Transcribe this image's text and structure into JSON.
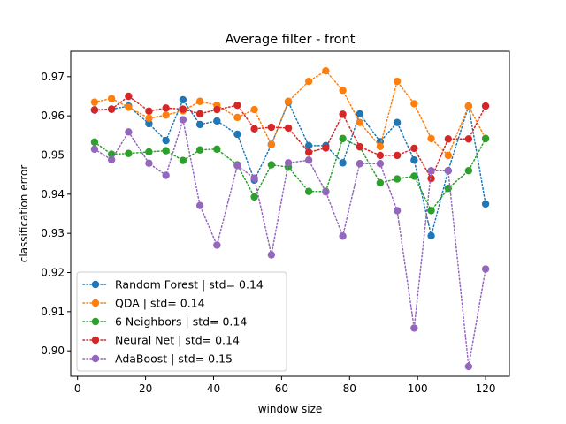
{
  "chart_data": {
    "type": "line",
    "title": "Average filter - front",
    "xlabel": "window size",
    "ylabel": "classification error",
    "xlim": [
      -2,
      127
    ],
    "ylim": [
      0.8935,
      0.9765
    ],
    "xticks": [
      0,
      20,
      40,
      60,
      80,
      100,
      120
    ],
    "yticks": [
      0.9,
      0.91,
      0.92,
      0.93,
      0.94,
      0.95,
      0.96,
      0.97
    ],
    "xtick_labels": [
      "0",
      "20",
      "40",
      "60",
      "80",
      "100",
      "120"
    ],
    "ytick_labels": [
      "0.90",
      "0.91",
      "0.92",
      "0.93",
      "0.94",
      "0.95",
      "0.96",
      "0.97"
    ],
    "legend_position": "lower-left",
    "line_style": "dotted",
    "grid": false,
    "x": [
      5,
      10,
      15,
      21,
      26,
      31,
      36,
      41,
      47,
      52,
      57,
      62,
      68,
      73,
      78,
      83,
      89,
      94,
      99,
      104,
      109,
      115,
      120
    ],
    "series": [
      {
        "name": "Random Forest | std= 0.14",
        "color": "#1f77b4",
        "values": [
          0.9615,
          0.9617,
          0.9625,
          0.958,
          0.9537,
          0.9641,
          0.9578,
          0.9587,
          0.9553,
          0.9436,
          0.9527,
          0.9635,
          0.9524,
          0.9524,
          0.948,
          0.9605,
          0.9534,
          0.9583,
          0.9487,
          0.9294,
          0.946,
          0.9625,
          0.9375
        ]
      },
      {
        "name": "QDA | std= 0.14",
        "color": "#ff7f0e",
        "values": [
          0.9635,
          0.9644,
          0.9622,
          0.9594,
          0.9602,
          0.9613,
          0.9637,
          0.9627,
          0.9596,
          0.9616,
          0.9526,
          0.9637,
          0.9688,
          0.9715,
          0.9665,
          0.9583,
          0.9522,
          0.9688,
          0.9631,
          0.9542,
          0.9499,
          0.9625,
          0.9542
        ]
      },
      {
        "name": "6 Neighbors | std= 0.14",
        "color": "#2ca02c",
        "values": [
          0.9533,
          0.9502,
          0.9504,
          0.9508,
          0.9511,
          0.9486,
          0.9513,
          0.9515,
          0.9475,
          0.9393,
          0.9475,
          0.9469,
          0.9407,
          0.9407,
          0.9542,
          0.9521,
          0.9429,
          0.9439,
          0.9446,
          0.9358,
          0.9415,
          0.946,
          0.9542
        ]
      },
      {
        "name": "Neural Net | std= 0.14",
        "color": "#d62728",
        "values": [
          0.9615,
          0.9617,
          0.965,
          0.9612,
          0.962,
          0.9617,
          0.9605,
          0.9616,
          0.9627,
          0.9567,
          0.9571,
          0.9569,
          0.9507,
          0.9518,
          0.9604,
          0.9521,
          0.9499,
          0.9499,
          0.9517,
          0.944,
          0.9541,
          0.9541,
          0.9625
        ]
      },
      {
        "name": "AdaBoost | std= 0.15",
        "color": "#9467bd",
        "values": [
          0.9515,
          0.9488,
          0.9559,
          0.9479,
          0.9448,
          0.959,
          0.9371,
          0.927,
          0.9473,
          0.9441,
          0.9245,
          0.948,
          0.9487,
          0.9406,
          0.9293,
          0.9478,
          0.9478,
          0.9358,
          0.9058,
          0.946,
          0.946,
          0.896,
          0.9209
        ]
      }
    ]
  }
}
